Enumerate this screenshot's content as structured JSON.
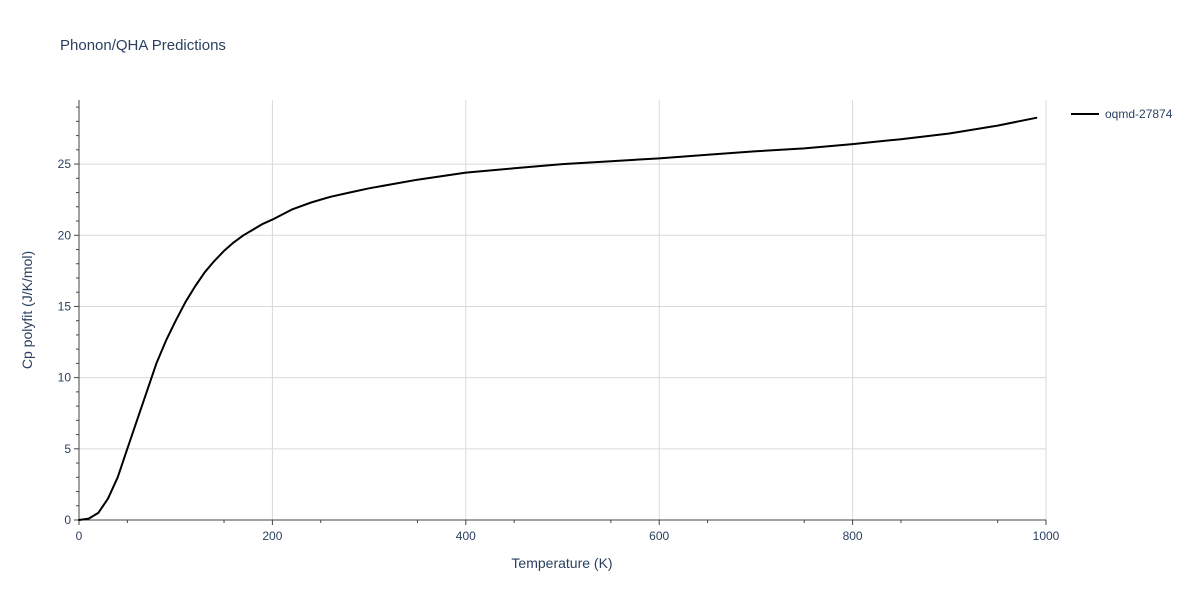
{
  "chart_data": {
    "type": "line",
    "title": "Phonon/QHA Predictions",
    "xlabel": "Temperature (K)",
    "ylabel": "Cp polyfit (J/K/mol)",
    "xlim": [
      0,
      1000
    ],
    "ylim": [
      0,
      29.5
    ],
    "x_ticks": [
      0,
      200,
      400,
      600,
      800,
      1000
    ],
    "y_ticks": [
      0,
      5,
      10,
      15,
      20,
      25
    ],
    "grid": true,
    "legend_position": "top-right",
    "series": [
      {
        "name": "oqmd-27874",
        "color": "#000000",
        "x": [
          0,
          10,
          20,
          30,
          40,
          50,
          60,
          70,
          80,
          90,
          100,
          110,
          120,
          130,
          140,
          150,
          160,
          170,
          180,
          190,
          200,
          220,
          240,
          260,
          280,
          300,
          350,
          400,
          450,
          500,
          550,
          600,
          650,
          700,
          750,
          800,
          850,
          900,
          950,
          990
        ],
        "y": [
          0,
          0.1,
          0.5,
          1.5,
          3.0,
          5.0,
          7.0,
          9.0,
          11.0,
          12.6,
          14.0,
          15.3,
          16.4,
          17.4,
          18.2,
          18.9,
          19.5,
          20.0,
          20.4,
          20.8,
          21.1,
          21.8,
          22.3,
          22.7,
          23.0,
          23.3,
          23.9,
          24.4,
          24.7,
          25.0,
          25.2,
          25.4,
          25.65,
          25.9,
          26.1,
          26.4,
          26.75,
          27.15,
          27.7,
          28.25
        ]
      }
    ]
  }
}
